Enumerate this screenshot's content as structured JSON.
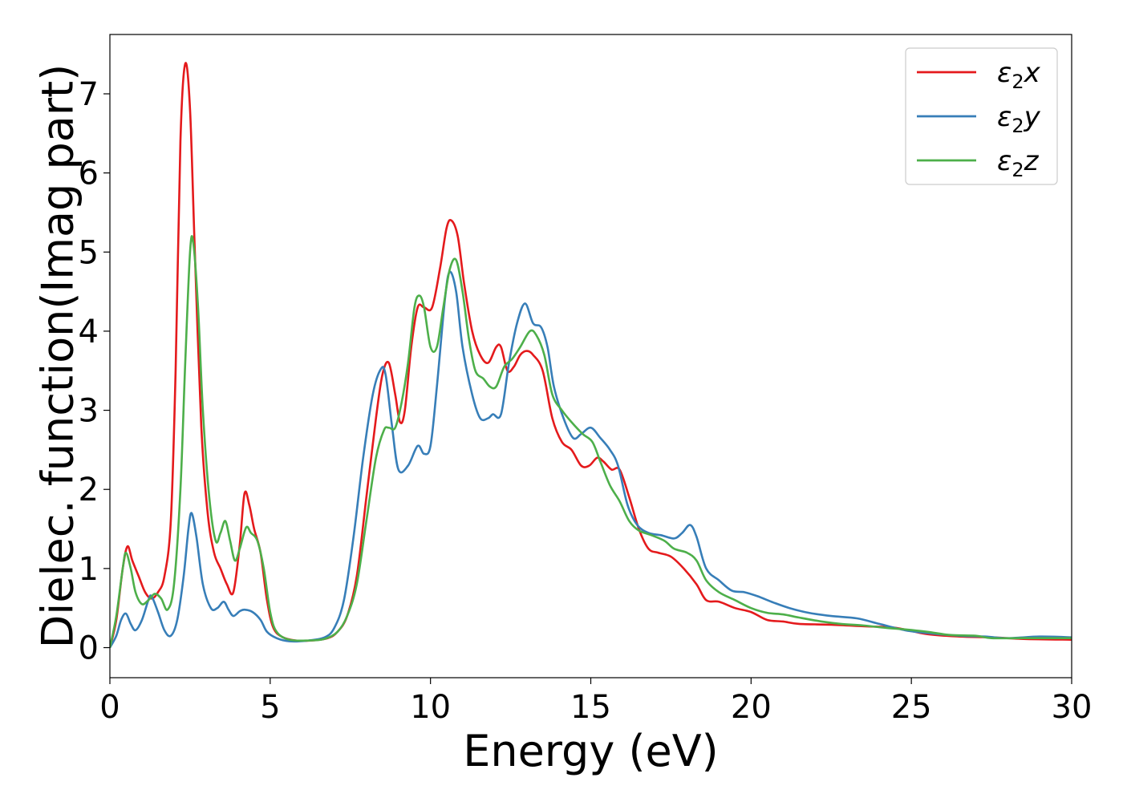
{
  "chart_data": {
    "type": "line",
    "xlabel": "Energy (eV)",
    "ylabel": "Dielec. function(Imag part)",
    "xlim": [
      0,
      30
    ],
    "ylim": [
      -0.38,
      7.75
    ],
    "xticks": [
      0,
      5,
      10,
      15,
      20,
      25,
      30
    ],
    "yticks": [
      0,
      1,
      2,
      3,
      4,
      5,
      6,
      7
    ],
    "grid": false,
    "legend_position": "top-right",
    "series": [
      {
        "name": "ε₂x",
        "legend_main": "ε",
        "legend_sub": "2",
        "legend_tail": "x",
        "color": "#e41a1c",
        "points": [
          [
            0,
            0
          ],
          [
            0.2,
            0.35
          ],
          [
            0.4,
            1.0
          ],
          [
            0.55,
            1.28
          ],
          [
            0.7,
            1.1
          ],
          [
            0.9,
            0.9
          ],
          [
            1.1,
            0.7
          ],
          [
            1.3,
            0.62
          ],
          [
            1.5,
            0.7
          ],
          [
            1.7,
            0.9
          ],
          [
            1.9,
            1.6
          ],
          [
            2.05,
            3.5
          ],
          [
            2.2,
            6.4
          ],
          [
            2.35,
            7.38
          ],
          [
            2.5,
            6.8
          ],
          [
            2.65,
            5.0
          ],
          [
            2.85,
            2.8
          ],
          [
            3.05,
            1.7
          ],
          [
            3.25,
            1.2
          ],
          [
            3.45,
            1.0
          ],
          [
            3.65,
            0.8
          ],
          [
            3.85,
            0.7
          ],
          [
            4.05,
            1.3
          ],
          [
            4.2,
            1.95
          ],
          [
            4.35,
            1.8
          ],
          [
            4.5,
            1.5
          ],
          [
            4.7,
            1.2
          ],
          [
            4.9,
            0.6
          ],
          [
            5.1,
            0.25
          ],
          [
            5.4,
            0.13
          ],
          [
            5.8,
            0.09
          ],
          [
            6.3,
            0.09
          ],
          [
            6.8,
            0.12
          ],
          [
            7.1,
            0.2
          ],
          [
            7.4,
            0.4
          ],
          [
            7.7,
            0.9
          ],
          [
            8.0,
            1.9
          ],
          [
            8.3,
            2.9
          ],
          [
            8.5,
            3.45
          ],
          [
            8.7,
            3.6
          ],
          [
            8.9,
            3.2
          ],
          [
            9.05,
            2.85
          ],
          [
            9.2,
            3.0
          ],
          [
            9.4,
            3.8
          ],
          [
            9.6,
            4.3
          ],
          [
            9.8,
            4.3
          ],
          [
            10.05,
            4.3
          ],
          [
            10.3,
            4.8
          ],
          [
            10.5,
            5.3
          ],
          [
            10.65,
            5.4
          ],
          [
            10.85,
            5.2
          ],
          [
            11.05,
            4.6
          ],
          [
            11.3,
            4.0
          ],
          [
            11.55,
            3.7
          ],
          [
            11.8,
            3.6
          ],
          [
            12.05,
            3.8
          ],
          [
            12.2,
            3.8
          ],
          [
            12.4,
            3.5
          ],
          [
            12.6,
            3.55
          ],
          [
            12.8,
            3.7
          ],
          [
            13.0,
            3.75
          ],
          [
            13.2,
            3.7
          ],
          [
            13.5,
            3.5
          ],
          [
            13.8,
            2.9
          ],
          [
            14.1,
            2.6
          ],
          [
            14.4,
            2.5
          ],
          [
            14.7,
            2.3
          ],
          [
            14.95,
            2.3
          ],
          [
            15.2,
            2.4
          ],
          [
            15.4,
            2.35
          ],
          [
            15.65,
            2.25
          ],
          [
            15.9,
            2.25
          ],
          [
            16.2,
            1.9
          ],
          [
            16.5,
            1.5
          ],
          [
            16.8,
            1.25
          ],
          [
            17.1,
            1.2
          ],
          [
            17.5,
            1.15
          ],
          [
            17.9,
            1.0
          ],
          [
            18.3,
            0.8
          ],
          [
            18.6,
            0.6
          ],
          [
            19.0,
            0.58
          ],
          [
            19.5,
            0.5
          ],
          [
            20.0,
            0.45
          ],
          [
            20.5,
            0.35
          ],
          [
            21.0,
            0.33
          ],
          [
            21.5,
            0.3
          ],
          [
            22.5,
            0.29
          ],
          [
            23.5,
            0.27
          ],
          [
            24.5,
            0.25
          ],
          [
            25.5,
            0.17
          ],
          [
            26.5,
            0.14
          ],
          [
            27.5,
            0.13
          ],
          [
            28.5,
            0.11
          ],
          [
            30,
            0.1
          ]
        ]
      },
      {
        "name": "ε₂y",
        "legend_main": "ε",
        "legend_sub": "2",
        "legend_tail": "y",
        "color": "#377eb8",
        "points": [
          [
            0,
            0
          ],
          [
            0.2,
            0.15
          ],
          [
            0.35,
            0.35
          ],
          [
            0.5,
            0.43
          ],
          [
            0.65,
            0.3
          ],
          [
            0.8,
            0.22
          ],
          [
            1.0,
            0.35
          ],
          [
            1.2,
            0.6
          ],
          [
            1.3,
            0.65
          ],
          [
            1.5,
            0.45
          ],
          [
            1.7,
            0.22
          ],
          [
            1.9,
            0.15
          ],
          [
            2.1,
            0.35
          ],
          [
            2.3,
            0.9
          ],
          [
            2.45,
            1.5
          ],
          [
            2.55,
            1.7
          ],
          [
            2.7,
            1.4
          ],
          [
            2.9,
            0.8
          ],
          [
            3.15,
            0.5
          ],
          [
            3.35,
            0.5
          ],
          [
            3.55,
            0.58
          ],
          [
            3.7,
            0.48
          ],
          [
            3.85,
            0.4
          ],
          [
            4.05,
            0.46
          ],
          [
            4.2,
            0.48
          ],
          [
            4.45,
            0.45
          ],
          [
            4.7,
            0.35
          ],
          [
            4.9,
            0.2
          ],
          [
            5.2,
            0.12
          ],
          [
            5.6,
            0.08
          ],
          [
            6.2,
            0.09
          ],
          [
            6.7,
            0.13
          ],
          [
            7.0,
            0.25
          ],
          [
            7.3,
            0.6
          ],
          [
            7.6,
            1.4
          ],
          [
            7.9,
            2.4
          ],
          [
            8.2,
            3.2
          ],
          [
            8.45,
            3.52
          ],
          [
            8.6,
            3.45
          ],
          [
            8.8,
            2.8
          ],
          [
            9.0,
            2.25
          ],
          [
            9.3,
            2.3
          ],
          [
            9.6,
            2.55
          ],
          [
            9.8,
            2.45
          ],
          [
            10.0,
            2.55
          ],
          [
            10.2,
            3.3
          ],
          [
            10.45,
            4.4
          ],
          [
            10.6,
            4.75
          ],
          [
            10.8,
            4.5
          ],
          [
            11.0,
            3.8
          ],
          [
            11.3,
            3.2
          ],
          [
            11.55,
            2.9
          ],
          [
            11.8,
            2.9
          ],
          [
            11.95,
            2.95
          ],
          [
            12.2,
            2.95
          ],
          [
            12.45,
            3.6
          ],
          [
            12.7,
            4.1
          ],
          [
            12.95,
            4.35
          ],
          [
            13.2,
            4.1
          ],
          [
            13.45,
            4.05
          ],
          [
            13.65,
            3.8
          ],
          [
            13.85,
            3.3
          ],
          [
            14.15,
            2.9
          ],
          [
            14.45,
            2.65
          ],
          [
            14.7,
            2.7
          ],
          [
            15.0,
            2.78
          ],
          [
            15.3,
            2.65
          ],
          [
            15.6,
            2.5
          ],
          [
            15.85,
            2.3
          ],
          [
            16.15,
            1.8
          ],
          [
            16.45,
            1.55
          ],
          [
            16.8,
            1.45
          ],
          [
            17.2,
            1.42
          ],
          [
            17.6,
            1.38
          ],
          [
            17.85,
            1.45
          ],
          [
            18.1,
            1.55
          ],
          [
            18.3,
            1.4
          ],
          [
            18.6,
            1.0
          ],
          [
            19.0,
            0.85
          ],
          [
            19.4,
            0.72
          ],
          [
            19.8,
            0.7
          ],
          [
            20.2,
            0.65
          ],
          [
            20.7,
            0.57
          ],
          [
            21.2,
            0.5
          ],
          [
            21.8,
            0.44
          ],
          [
            22.5,
            0.4
          ],
          [
            23.3,
            0.37
          ],
          [
            24.0,
            0.3
          ],
          [
            24.8,
            0.22
          ],
          [
            25.6,
            0.18
          ],
          [
            26.5,
            0.15
          ],
          [
            27.3,
            0.14
          ],
          [
            28.0,
            0.12
          ],
          [
            29.0,
            0.14
          ],
          [
            30,
            0.13
          ]
        ]
      },
      {
        "name": "ε₂z",
        "legend_main": "ε",
        "legend_sub": "2",
        "legend_tail": "z",
        "color": "#4daf4a",
        "points": [
          [
            0,
            0
          ],
          [
            0.2,
            0.4
          ],
          [
            0.4,
            1.0
          ],
          [
            0.5,
            1.2
          ],
          [
            0.65,
            1.0
          ],
          [
            0.8,
            0.7
          ],
          [
            1.0,
            0.55
          ],
          [
            1.2,
            0.6
          ],
          [
            1.4,
            0.68
          ],
          [
            1.6,
            0.62
          ],
          [
            1.8,
            0.48
          ],
          [
            2.0,
            0.8
          ],
          [
            2.2,
            2.0
          ],
          [
            2.35,
            3.6
          ],
          [
            2.5,
            5.0
          ],
          [
            2.6,
            5.12
          ],
          [
            2.75,
            4.3
          ],
          [
            2.9,
            3.0
          ],
          [
            3.1,
            1.9
          ],
          [
            3.3,
            1.35
          ],
          [
            3.45,
            1.45
          ],
          [
            3.6,
            1.6
          ],
          [
            3.75,
            1.35
          ],
          [
            3.9,
            1.1
          ],
          [
            4.05,
            1.25
          ],
          [
            4.25,
            1.52
          ],
          [
            4.4,
            1.45
          ],
          [
            4.6,
            1.35
          ],
          [
            4.8,
            1.0
          ],
          [
            5.0,
            0.45
          ],
          [
            5.2,
            0.2
          ],
          [
            5.6,
            0.1
          ],
          [
            6.2,
            0.09
          ],
          [
            6.7,
            0.11
          ],
          [
            7.1,
            0.2
          ],
          [
            7.4,
            0.4
          ],
          [
            7.7,
            0.8
          ],
          [
            8.0,
            1.6
          ],
          [
            8.3,
            2.4
          ],
          [
            8.55,
            2.75
          ],
          [
            8.7,
            2.78
          ],
          [
            8.9,
            2.78
          ],
          [
            9.1,
            3.1
          ],
          [
            9.3,
            3.6
          ],
          [
            9.5,
            4.3
          ],
          [
            9.65,
            4.45
          ],
          [
            9.8,
            4.3
          ],
          [
            10.0,
            3.8
          ],
          [
            10.2,
            3.8
          ],
          [
            10.4,
            4.3
          ],
          [
            10.6,
            4.78
          ],
          [
            10.8,
            4.9
          ],
          [
            11.0,
            4.5
          ],
          [
            11.2,
            3.9
          ],
          [
            11.4,
            3.5
          ],
          [
            11.65,
            3.4
          ],
          [
            11.85,
            3.3
          ],
          [
            12.05,
            3.3
          ],
          [
            12.3,
            3.55
          ],
          [
            12.55,
            3.65
          ],
          [
            12.8,
            3.8
          ],
          [
            13.1,
            4.0
          ],
          [
            13.3,
            3.95
          ],
          [
            13.55,
            3.7
          ],
          [
            13.8,
            3.2
          ],
          [
            14.1,
            3.0
          ],
          [
            14.4,
            2.85
          ],
          [
            14.75,
            2.7
          ],
          [
            15.05,
            2.6
          ],
          [
            15.3,
            2.35
          ],
          [
            15.6,
            2.05
          ],
          [
            15.9,
            1.85
          ],
          [
            16.2,
            1.6
          ],
          [
            16.5,
            1.48
          ],
          [
            16.9,
            1.42
          ],
          [
            17.3,
            1.35
          ],
          [
            17.6,
            1.25
          ],
          [
            18.0,
            1.2
          ],
          [
            18.3,
            1.1
          ],
          [
            18.6,
            0.85
          ],
          [
            19.0,
            0.7
          ],
          [
            19.5,
            0.6
          ],
          [
            20.0,
            0.5
          ],
          [
            20.5,
            0.44
          ],
          [
            21.0,
            0.42
          ],
          [
            21.5,
            0.38
          ],
          [
            22.2,
            0.33
          ],
          [
            22.8,
            0.3
          ],
          [
            23.5,
            0.28
          ],
          [
            24.2,
            0.25
          ],
          [
            24.8,
            0.23
          ],
          [
            25.5,
            0.2
          ],
          [
            26.2,
            0.16
          ],
          [
            27.0,
            0.15
          ],
          [
            27.5,
            0.12
          ],
          [
            28.5,
            0.12
          ],
          [
            30,
            0.12
          ]
        ]
      }
    ]
  }
}
